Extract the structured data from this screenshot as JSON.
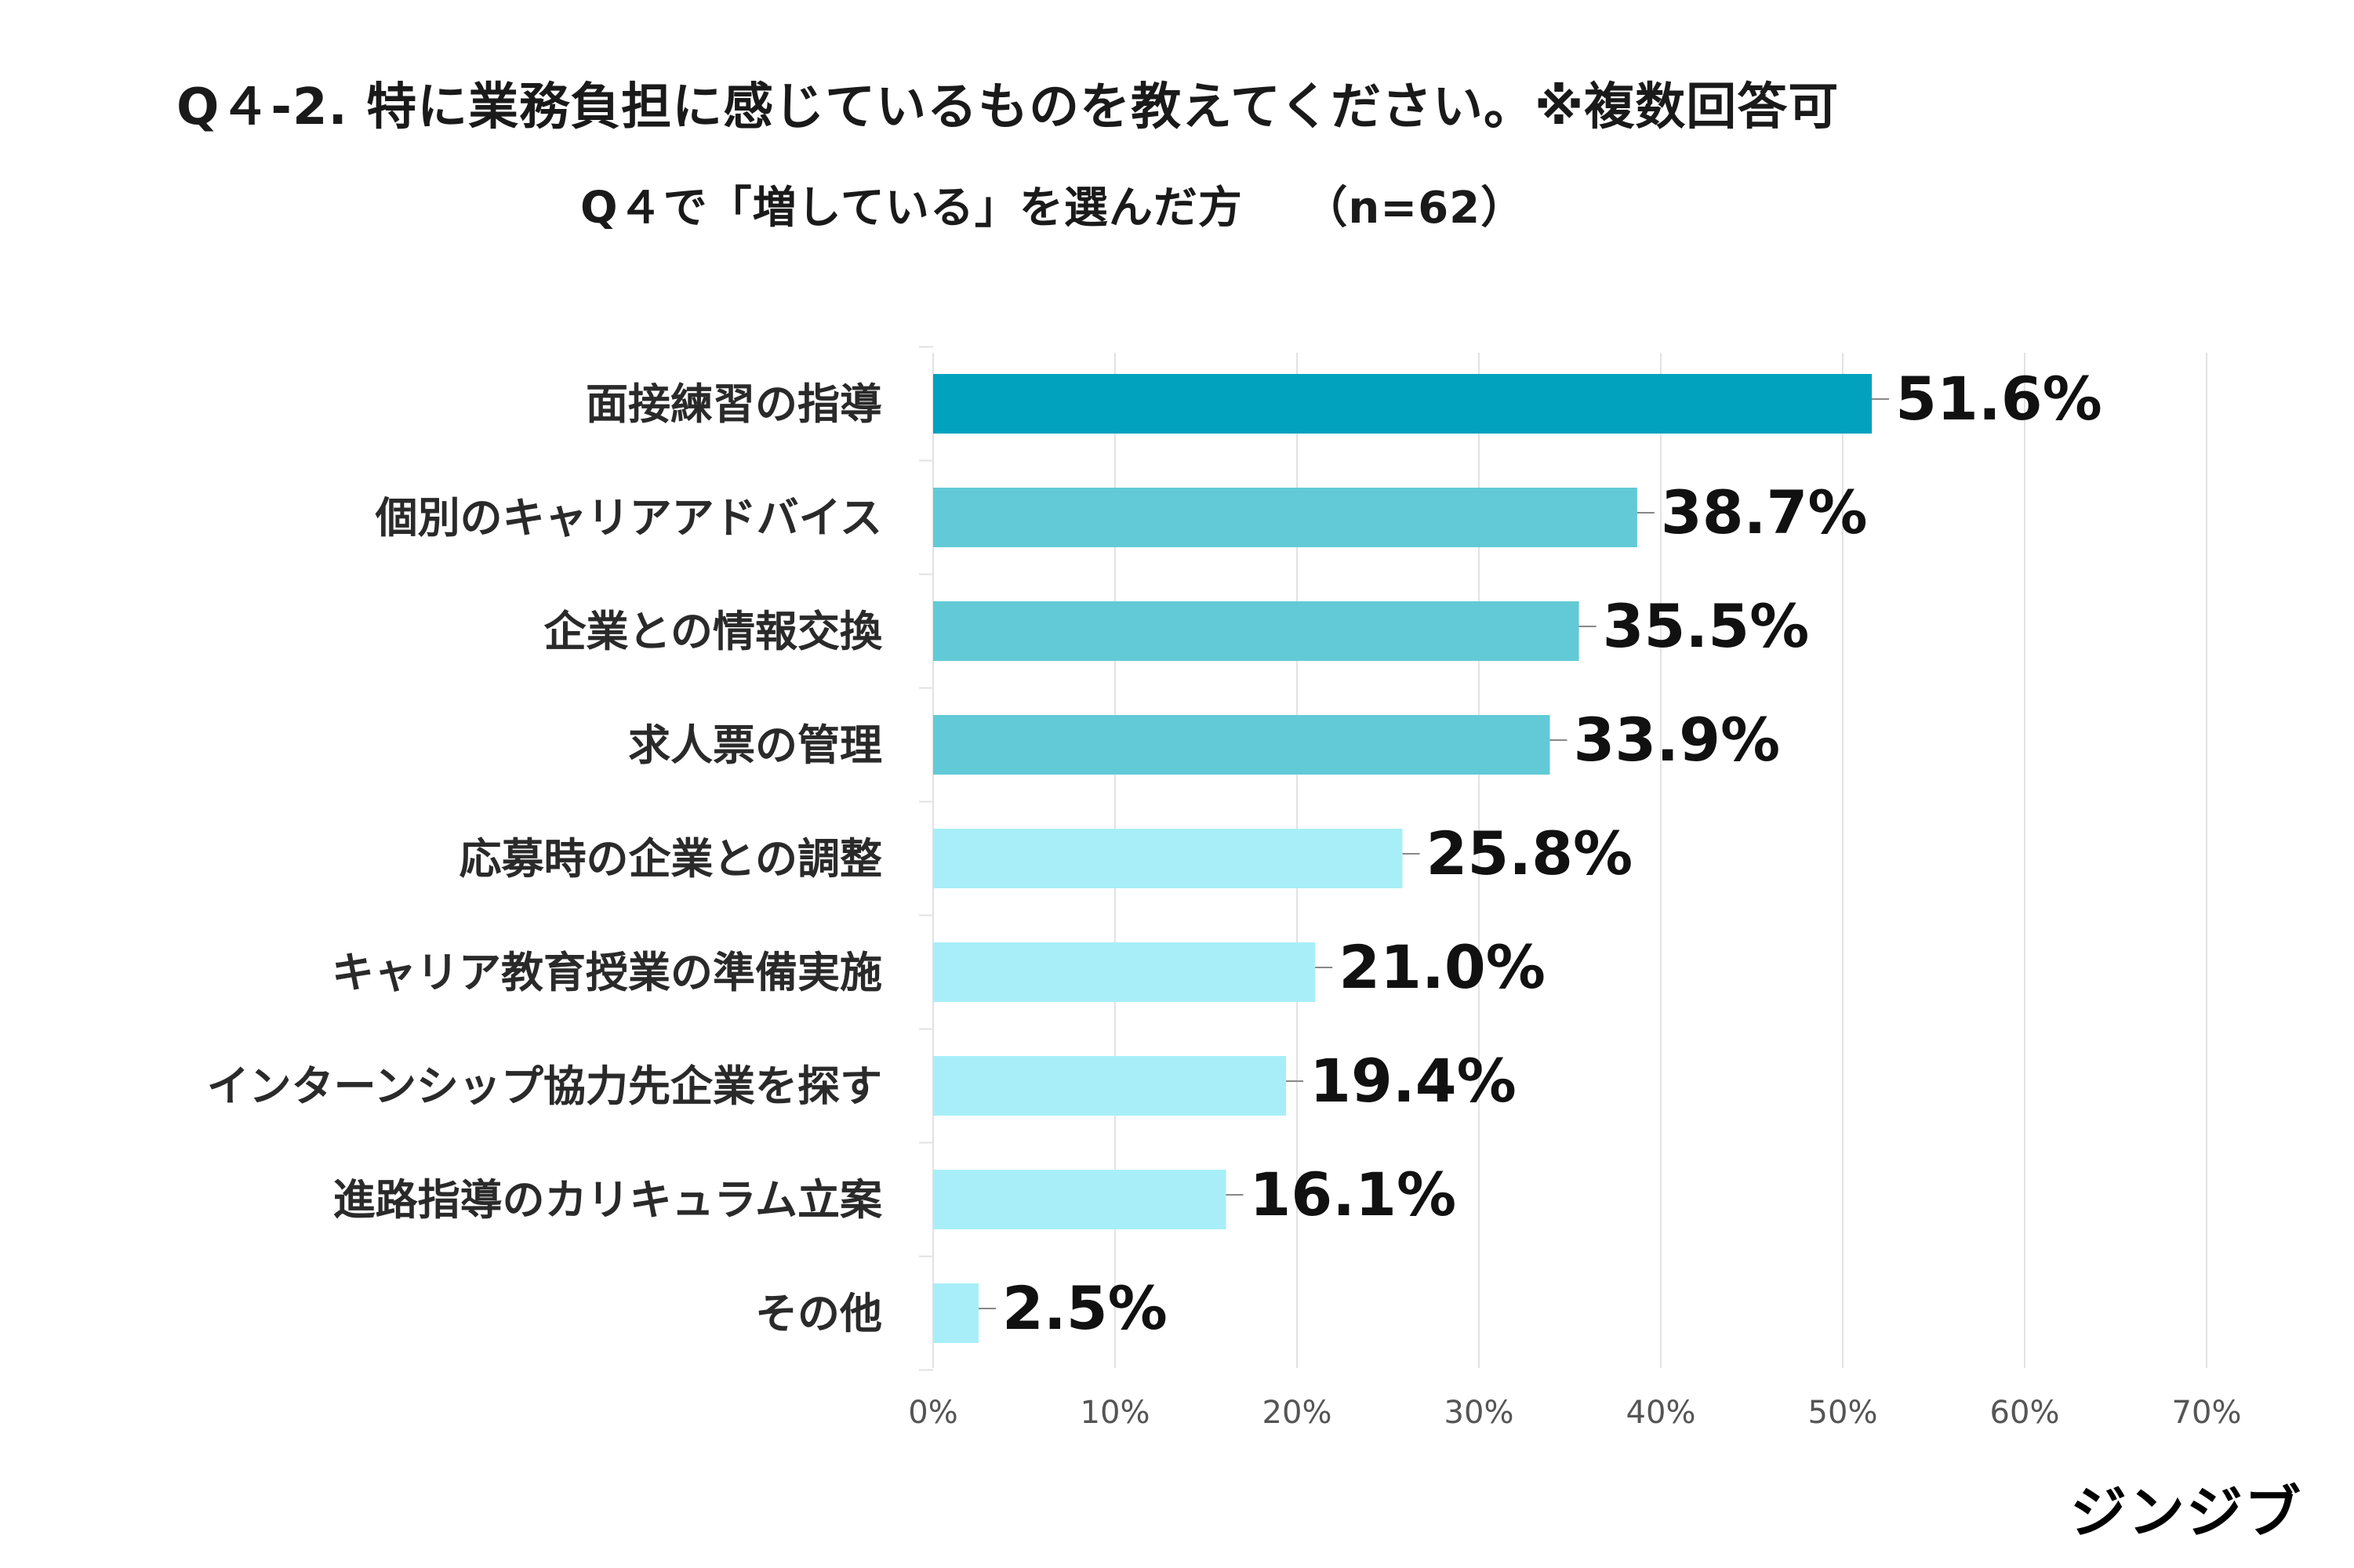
{
  "header": {
    "title": "Q４-2.  特に業務負担に感じているものを教えてください。※複数回答可",
    "subtitle": "Q４で「増している」を選んだ方　 （n=62）"
  },
  "footer": {
    "logo_text": "ジンジブ"
  },
  "colors": {
    "top": "#00A2BE",
    "mid": "#62CAD6",
    "low": "#A8EEF8",
    "grid": "#E2E2E2"
  },
  "chart_data": {
    "type": "bar",
    "orientation": "horizontal",
    "title": "",
    "xlabel": "",
    "ylabel": "",
    "xlim": [
      0,
      70
    ],
    "grid": true,
    "ticks": [
      "0%",
      "10%",
      "20%",
      "30%",
      "40%",
      "50%",
      "60%",
      "70%"
    ],
    "tick_values": [
      0,
      10,
      20,
      30,
      40,
      50,
      60,
      70
    ],
    "categories": [
      "面接練習の指導",
      "個別のキャリアアドバイス",
      "企業との情報交換",
      "求人票の管理",
      "応募時の企業との調整",
      "キャリア教育授業の準備実施",
      "インターンシップ協力先企業を探す",
      "進路指導のカリキュラム立案",
      "その他"
    ],
    "values": [
      51.6,
      38.7,
      35.5,
      33.9,
      25.8,
      21.0,
      19.4,
      16.1,
      2.5
    ],
    "value_labels": [
      "51.6%",
      "38.7%",
      "35.5%",
      "33.9%",
      "25.8%",
      "21.0%",
      "19.4%",
      "16.1%",
      "2.5%"
    ],
    "color_groups": [
      "top",
      "mid",
      "mid",
      "mid",
      "low",
      "low",
      "low",
      "low",
      "low"
    ]
  }
}
